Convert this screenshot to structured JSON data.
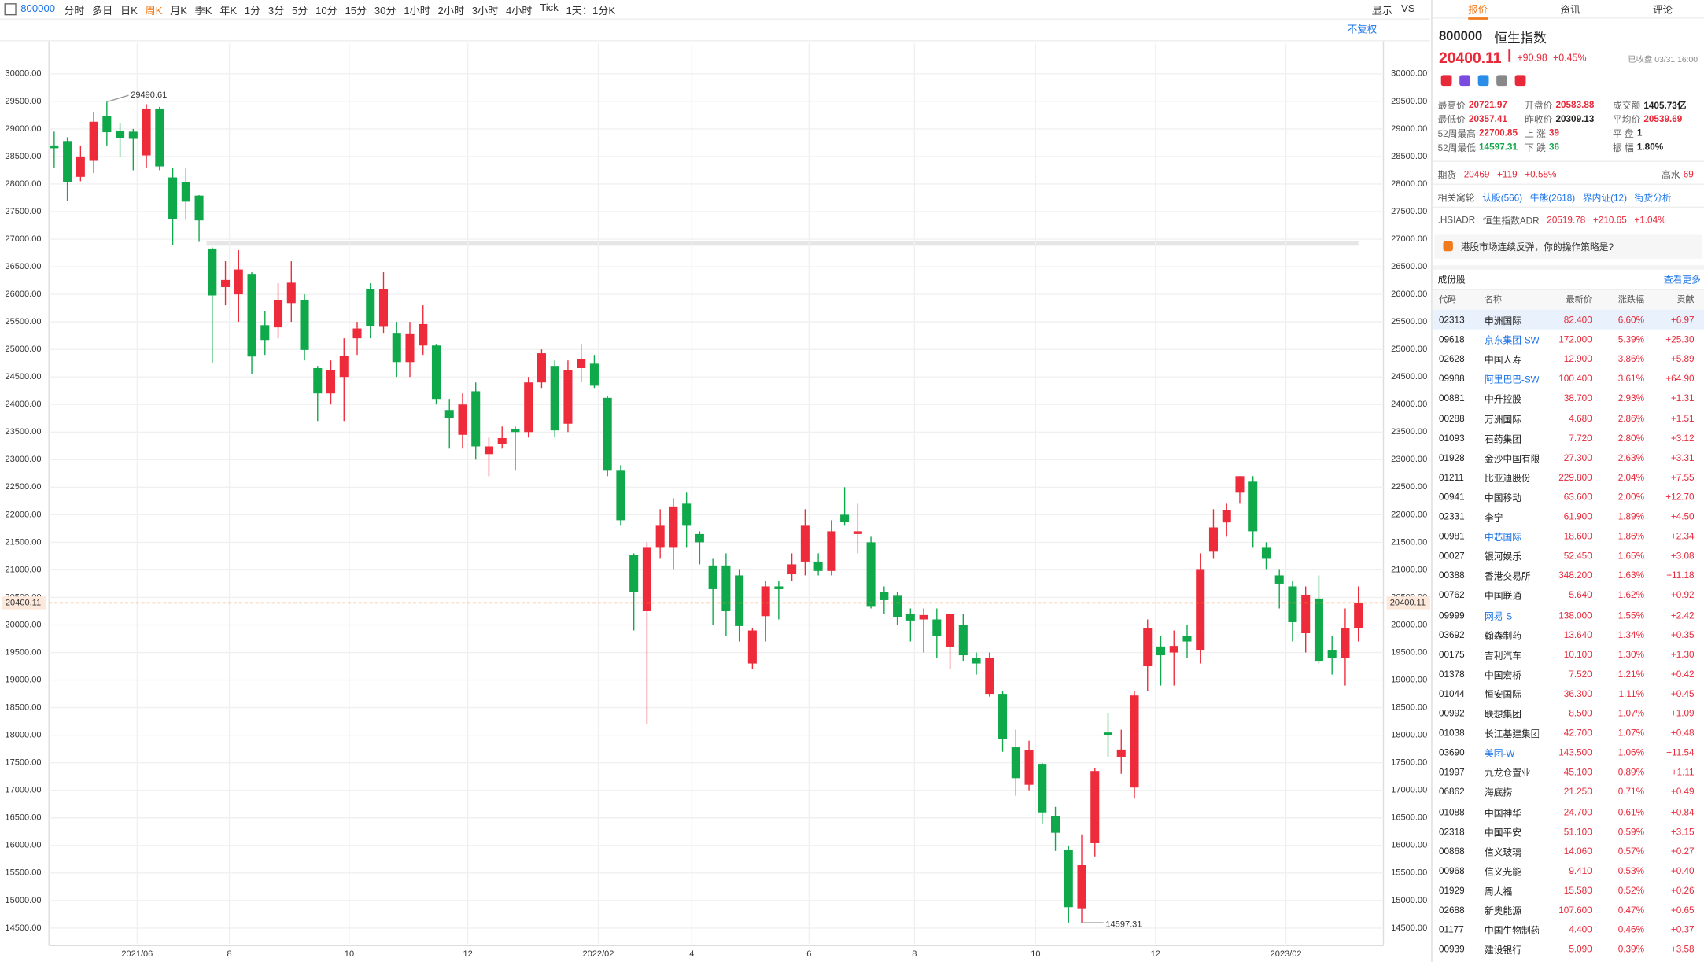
{
  "toolbar": {
    "symbol": "800000",
    "periods": [
      "分时",
      "多日",
      "日K",
      "周K",
      "月K",
      "季K",
      "年K",
      "1分",
      "3分",
      "5分",
      "10分",
      "15分",
      "30分",
      "1小时",
      "2小时",
      "3小时",
      "4小时",
      "Tick"
    ],
    "active": 3,
    "range": "1天：1分K",
    "display": "显示",
    "vs": "VS",
    "adjust": "不复权"
  },
  "chart_data": {
    "type": "candlestick",
    "up_color": "#ee2b3b",
    "down_color": "#0fa84a",
    "grid": true,
    "open": [
      28700,
      28780,
      28130,
      28420,
      29230,
      28970,
      28950,
      28520,
      29370,
      28120,
      28030,
      27790,
      26830,
      26130,
      26000,
      26370,
      25440,
      25400,
      25840,
      25890,
      24660,
      24200,
      24500,
      25200,
      26100,
      25410,
      25300,
      24770,
      25070,
      25070,
      23900,
      23450,
      24240,
      23100,
      23280,
      23550,
      23500,
      24400,
      24700,
      23650,
      24660,
      24740,
      24120,
      22800,
      21270,
      20250,
      21400,
      21400,
      22200,
      21650,
      21080,
      21080,
      20900,
      19300,
      20160,
      20700,
      20920,
      21150,
      21150,
      20980,
      22000,
      21650,
      21500,
      20600,
      20530,
      20200,
      20100,
      20100,
      19600,
      20000,
      19400,
      18750,
      18750,
      17780,
      17100,
      17480,
      16530,
      15920,
      14860,
      16040,
      18050,
      17600,
      17050,
      19250,
      19610,
      19500,
      19800,
      19550,
      21330,
      21860,
      22400,
      22600,
      21400,
      20900,
      20700,
      19850,
      20480,
      19550,
      19400,
      19950
    ],
    "high": [
      28950,
      28850,
      28700,
      29300,
      29490.61,
      29100,
      29000,
      29450,
      29400,
      28300,
      28300,
      27800,
      26850,
      26600,
      26800,
      26400,
      25700,
      26200,
      26600,
      26000,
      24700,
      24800,
      25200,
      25500,
      26200,
      26400,
      25500,
      25500,
      25800,
      25100,
      24100,
      24200,
      24400,
      23400,
      23600,
      23600,
      24500,
      25000,
      24800,
      24800,
      25100,
      24900,
      24150,
      22900,
      21300,
      21500,
      22100,
      22300,
      22400,
      21700,
      21200,
      21300,
      21000,
      19950,
      20800,
      20800,
      21300,
      22100,
      21300,
      21900,
      22500,
      22200,
      21600,
      20700,
      20600,
      20300,
      20300,
      20300,
      20200,
      20200,
      19500,
      19500,
      18800,
      18100,
      17900,
      17500,
      16700,
      16000,
      16200,
      17400,
      18400,
      18100,
      18800,
      20100,
      19800,
      19900,
      20000,
      21300,
      22100,
      22200,
      22700,
      22700,
      21500,
      21000,
      20800,
      20700,
      20900,
      19800,
      20300,
      20700
    ],
    "low": [
      28300,
      27700,
      28050,
      28200,
      28700,
      28500,
      28250,
      28300,
      28250,
      26900,
      27350,
      26950,
      24750,
      25800,
      25500,
      24550,
      24900,
      25200,
      25500,
      24800,
      23700,
      24000,
      23700,
      24900,
      25200,
      25300,
      24500,
      24500,
      24900,
      24000,
      23200,
      23200,
      23000,
      22700,
      23200,
      22800,
      23400,
      24300,
      23400,
      23500,
      24400,
      24300,
      22700,
      21800,
      19900,
      18200,
      21200,
      21000,
      21400,
      21100,
      20000,
      19800,
      19700,
      19200,
      19700,
      20100,
      20800,
      20900,
      20900,
      20900,
      21800,
      21300,
      20300,
      20200,
      20000,
      19700,
      19500,
      19400,
      19200,
      19350,
      19100,
      18700,
      17700,
      16900,
      17000,
      16400,
      15900,
      14600,
      14597.31,
      15800,
      17600,
      17300,
      16850,
      18800,
      18900,
      18900,
      19400,
      19300,
      21200,
      21600,
      22200,
      21400,
      21000,
      20300,
      19700,
      19500,
      19300,
      19100,
      18900,
      19700
    ],
    "close": [
      28650,
      28030,
      28500,
      29130,
      28940,
      28830,
      28820,
      29370,
      28320,
      27370,
      27680,
      27340,
      25980,
      26260,
      26450,
      24870,
      25170,
      25890,
      26210,
      24990,
      24200,
      24620,
      24880,
      25380,
      25420,
      26100,
      24770,
      25290,
      25460,
      24100,
      23750,
      24000,
      23240,
      23240,
      23390,
      23500,
      24400,
      24930,
      23530,
      24620,
      24830,
      24340,
      22800,
      21900,
      20600,
      21400,
      21800,
      22150,
      21800,
      21500,
      20650,
      20250,
      19980,
      19900,
      20700,
      20650,
      21100,
      21800,
      20980,
      21700,
      21870,
      21700,
      20330,
      20450,
      20150,
      20080,
      20180,
      19800,
      20200,
      19450,
      19300,
      19400,
      17930,
      17220,
      17730,
      16600,
      16230,
      14880,
      15640,
      17350,
      18000,
      17740,
      18720,
      19940,
      19450,
      19620,
      19700,
      21000,
      21770,
      22080,
      22700,
      21700,
      21200,
      20750,
      20050,
      20550,
      19350,
      19400,
      19950,
      20400.11
    ],
    "xlim": [
      -0.4,
      100.9
    ],
    "xticks": [
      {
        "value": 6.3,
        "label": "2021/06"
      },
      {
        "value": 13.3,
        "label": "8"
      },
      {
        "value": 22.4,
        "label": "10"
      },
      {
        "value": 31.4,
        "label": "12"
      },
      {
        "value": 41.3,
        "label": "2022/02"
      },
      {
        "value": 48.4,
        "label": "4"
      },
      {
        "value": 57.3,
        "label": "6"
      },
      {
        "value": 65.3,
        "label": "8"
      },
      {
        "value": 74.5,
        "label": "10"
      },
      {
        "value": 83.6,
        "label": "12"
      },
      {
        "value": 93.5,
        "label": "2023/02"
      }
    ],
    "ylim": [
      14220,
      30550
    ],
    "yticks": [
      {
        "value": 14500,
        "label": "14500.00"
      },
      {
        "value": 15000,
        "label": "15000.00"
      },
      {
        "value": 15500,
        "label": "15500.00"
      },
      {
        "value": 16000,
        "label": "16000.00"
      },
      {
        "value": 16500,
        "label": "16500.00"
      },
      {
        "value": 17000,
        "label": "17000.00"
      },
      {
        "value": 17500,
        "label": "17500.00"
      },
      {
        "value": 18000,
        "label": "18000.00"
      },
      {
        "value": 18500,
        "label": "18500.00"
      },
      {
        "value": 19000,
        "label": "19000.00"
      },
      {
        "value": 19500,
        "label": "19500.00"
      },
      {
        "value": 20000,
        "label": "20000.00"
      },
      {
        "value": 20500,
        "label": "20500.00"
      },
      {
        "value": 21000,
        "label": "21000.00"
      },
      {
        "value": 21500,
        "label": "21500.00"
      },
      {
        "value": 22000,
        "label": "22000.00"
      },
      {
        "value": 22500,
        "label": "22500.00"
      },
      {
        "value": 23000,
        "label": "23000.00"
      },
      {
        "value": 23500,
        "label": "23500.00"
      },
      {
        "value": 24000,
        "label": "24000.00"
      },
      {
        "value": 24500,
        "label": "24500.00"
      },
      {
        "value": 25000,
        "label": "25000.00"
      },
      {
        "value": 25500,
        "label": "25500.00"
      },
      {
        "value": 26000,
        "label": "26000.00"
      },
      {
        "value": 26500,
        "label": "26500.00"
      },
      {
        "value": 27000,
        "label": "27000.00"
      },
      {
        "value": 27500,
        "label": "27500.00"
      },
      {
        "value": 28000,
        "label": "28000.00"
      },
      {
        "value": 28500,
        "label": "28500.00"
      },
      {
        "value": 29000,
        "label": "29000.00"
      },
      {
        "value": 29500,
        "label": "29500.00"
      },
      {
        "value": 30000,
        "label": "30000.00"
      }
    ],
    "last_price": 20400.11,
    "annotations": [
      {
        "x": 4,
        "value": 29490.61
      },
      {
        "x": 78,
        "value": 14597.31
      }
    ]
  },
  "panel": {
    "tabs": [
      "报价",
      "资讯",
      "评论"
    ],
    "code": "800000",
    "name": "恒生指数",
    "price": "20400.11",
    "change": "+90.98",
    "pct": "+0.45%",
    "status": "已收盘 03/31 16:00",
    "stats": [
      {
        "label": "最高价",
        "value": "20721.97",
        "tone": "up"
      },
      {
        "label": "开盘价",
        "value": "20583.88",
        "tone": "up"
      },
      {
        "label": "成交额",
        "value": "1405.73亿",
        "tone": "flat"
      },
      {
        "label": "最低价",
        "value": "20357.41",
        "tone": "up"
      },
      {
        "label": "昨收价",
        "value": "20309.13",
        "tone": "flat"
      },
      {
        "label": "平均价",
        "value": "20539.69",
        "tone": "up"
      },
      {
        "label": "52周最高",
        "value": "22700.85",
        "tone": "up"
      },
      {
        "label": "上 涨",
        "value": "39",
        "tone": "up"
      },
      {
        "label": "平 盘",
        "value": "1",
        "tone": "flat"
      },
      {
        "label": "52周最低",
        "value": "14597.31",
        "tone": "down"
      },
      {
        "label": "下 跌",
        "value": "36",
        "tone": "down"
      },
      {
        "label": "振 幅",
        "value": "1.80%",
        "tone": "flat"
      }
    ],
    "lines": [
      [
        {
          "text": "期货",
          "tone": "muted"
        },
        {
          "text": "20469",
          "tone": "up"
        },
        {
          "text": "+119",
          "tone": "up"
        },
        {
          "text": "+0.58%",
          "tone": "up"
        }
      ],
      [
        {
          "text": "相关窝轮",
          "tone": "muted"
        },
        {
          "text": "认股(566)",
          "tone": "link"
        },
        {
          "text": "牛熊(2618)",
          "tone": "link"
        },
        {
          "text": "界内证(12)",
          "tone": "link"
        },
        {
          "text": "街货分析",
          "tone": "link"
        }
      ],
      [
        {
          "text": ".HSIADR",
          "tone": "muted"
        },
        {
          "text": "恒生指数ADR",
          "tone": "muted"
        },
        {
          "text": "20519.78",
          "tone": "up"
        },
        {
          "text": "+210.65",
          "tone": "up"
        },
        {
          "text": "+1.04%",
          "tone": "up"
        }
      ]
    ],
    "premium": {
      "label": "高水",
      "value": "69"
    },
    "notice": "港股市场连续反弹，你的操作策略是?",
    "section": "成份股",
    "more": "查看更多",
    "headers": [
      "代码",
      "名称",
      "最新价",
      "涨跌幅",
      "贡献"
    ],
    "rows": [
      {
        "code": "02313",
        "name": "申洲国际",
        "price": "82.400",
        "pct": "6.60%",
        "contrib": "+6.97",
        "link": false
      },
      {
        "code": "09618",
        "name": "京东集团-SW",
        "price": "172.000",
        "pct": "5.39%",
        "contrib": "+25.30",
        "link": true
      },
      {
        "code": "02628",
        "name": "中国人寿",
        "price": "12.900",
        "pct": "3.86%",
        "contrib": "+5.89",
        "link": false
      },
      {
        "code": "09988",
        "name": "阿里巴巴-SW",
        "price": "100.400",
        "pct": "3.61%",
        "contrib": "+64.90",
        "link": true
      },
      {
        "code": "00881",
        "name": "中升控股",
        "price": "38.700",
        "pct": "2.93%",
        "contrib": "+1.31",
        "link": false
      },
      {
        "code": "00288",
        "name": "万洲国际",
        "price": "4.680",
        "pct": "2.86%",
        "contrib": "+1.51",
        "link": false
      },
      {
        "code": "01093",
        "name": "石药集团",
        "price": "7.720",
        "pct": "2.80%",
        "contrib": "+3.12",
        "link": false
      },
      {
        "code": "01928",
        "name": "金沙中国有限公司",
        "price": "27.300",
        "pct": "2.63%",
        "contrib": "+3.31",
        "link": false
      },
      {
        "code": "01211",
        "name": "比亚迪股份",
        "price": "229.800",
        "pct": "2.04%",
        "contrib": "+7.55",
        "link": false
      },
      {
        "code": "00941",
        "name": "中国移动",
        "price": "63.600",
        "pct": "2.00%",
        "contrib": "+12.70",
        "link": false
      },
      {
        "code": "02331",
        "name": "李宁",
        "price": "61.900",
        "pct": "1.89%",
        "contrib": "+4.50",
        "link": false
      },
      {
        "code": "00981",
        "name": "中芯国际",
        "price": "18.600",
        "pct": "1.86%",
        "contrib": "+2.34",
        "link": true
      },
      {
        "code": "00027",
        "name": "银河娱乐",
        "price": "52.450",
        "pct": "1.65%",
        "contrib": "+3.08",
        "link": false
      },
      {
        "code": "00388",
        "name": "香港交易所",
        "price": "348.200",
        "pct": "1.63%",
        "contrib": "+11.18",
        "link": false
      },
      {
        "code": "00762",
        "name": "中国联通",
        "price": "5.640",
        "pct": "1.62%",
        "contrib": "+0.92",
        "link": false
      },
      {
        "code": "09999",
        "name": "网易-S",
        "price": "138.000",
        "pct": "1.55%",
        "contrib": "+2.42",
        "link": true
      },
      {
        "code": "03692",
        "name": "翰森制药",
        "price": "13.640",
        "pct": "1.34%",
        "contrib": "+0.35",
        "link": false
      },
      {
        "code": "00175",
        "name": "吉利汽车",
        "price": "10.100",
        "pct": "1.30%",
        "contrib": "+1.30",
        "link": false
      },
      {
        "code": "01378",
        "name": "中国宏桥",
        "price": "7.520",
        "pct": "1.21%",
        "contrib": "+0.42",
        "link": false
      },
      {
        "code": "01044",
        "name": "恒安国际",
        "price": "36.300",
        "pct": "1.11%",
        "contrib": "+0.45",
        "link": false
      },
      {
        "code": "00992",
        "name": "联想集团",
        "price": "8.500",
        "pct": "1.07%",
        "contrib": "+1.09",
        "link": false
      },
      {
        "code": "01038",
        "name": "长江基建集团",
        "price": "42.700",
        "pct": "1.07%",
        "contrib": "+0.48",
        "link": false
      },
      {
        "code": "03690",
        "name": "美团-W",
        "price": "143.500",
        "pct": "1.06%",
        "contrib": "+11.54",
        "link": true
      },
      {
        "code": "01997",
        "name": "九龙仓置业",
        "price": "45.100",
        "pct": "0.89%",
        "contrib": "+1.11",
        "link": false
      },
      {
        "code": "06862",
        "name": "海底捞",
        "price": "21.250",
        "pct": "0.71%",
        "contrib": "+0.49",
        "link": false
      },
      {
        "code": "01088",
        "name": "中国神华",
        "price": "24.700",
        "pct": "0.61%",
        "contrib": "+0.84",
        "link": false
      },
      {
        "code": "02318",
        "name": "中国平安",
        "price": "51.100",
        "pct": "0.59%",
        "contrib": "+3.15",
        "link": false
      },
      {
        "code": "00868",
        "name": "信义玻璃",
        "price": "14.060",
        "pct": "0.57%",
        "contrib": "+0.27",
        "link": false
      },
      {
        "code": "00968",
        "name": "信义光能",
        "price": "9.410",
        "pct": "0.53%",
        "contrib": "+0.40",
        "link": false
      },
      {
        "code": "01929",
        "name": "周大福",
        "price": "15.580",
        "pct": "0.52%",
        "contrib": "+0.26",
        "link": false
      },
      {
        "code": "02688",
        "name": "新奥能源",
        "price": "107.600",
        "pct": "0.47%",
        "contrib": "+0.65",
        "link": false
      },
      {
        "code": "01177",
        "name": "中国生物制药",
        "price": "4.400",
        "pct": "0.46%",
        "contrib": "+0.37",
        "link": false
      },
      {
        "code": "00939",
        "name": "建设银行",
        "price": "5.090",
        "pct": "0.39%",
        "contrib": "+3.58",
        "link": false
      }
    ]
  }
}
